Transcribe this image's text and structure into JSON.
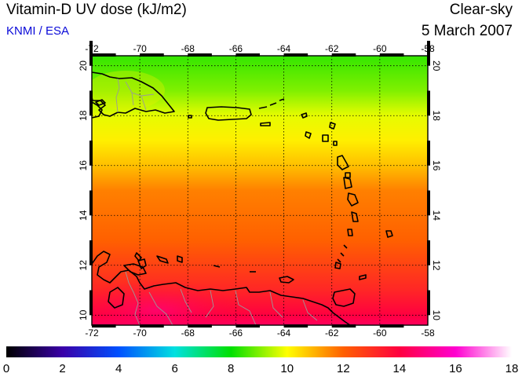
{
  "header": {
    "title": "Vitamin-D UV dose (kJ/m2)",
    "credit": "KNMI / ESA",
    "condition": "Clear-sky",
    "date": "5 March 2007"
  },
  "map": {
    "lon_ticks": [
      "-72",
      "-70",
      "-68",
      "-66",
      "-64",
      "-62",
      "-60",
      "-58"
    ],
    "lat_ticks": [
      "10",
      "12",
      "14",
      "16",
      "18",
      "20"
    ],
    "lon_range": [
      -72,
      -58
    ],
    "lat_range": [
      9.6,
      20.4
    ],
    "field_gradient_by_lat": [
      {
        "lat": 20.4,
        "value": 8.4
      },
      {
        "lat": 19.0,
        "value": 9.0
      },
      {
        "lat": 18.0,
        "value": 9.8
      },
      {
        "lat": 17.0,
        "value": 10.2
      },
      {
        "lat": 16.0,
        "value": 10.8
      },
      {
        "lat": 15.0,
        "value": 11.6
      },
      {
        "lat": 14.0,
        "value": 11.8
      },
      {
        "lat": 13.0,
        "value": 12.0
      },
      {
        "lat": 12.0,
        "value": 12.6
      },
      {
        "lat": 11.0,
        "value": 13.2
      },
      {
        "lat": 10.0,
        "value": 14.0
      },
      {
        "lat": 9.6,
        "value": 14.4
      }
    ],
    "gridlines": true
  },
  "colorbar": {
    "ticks": [
      "0",
      "2",
      "4",
      "6",
      "8",
      "10",
      "12",
      "14",
      "16",
      "18"
    ],
    "range": [
      0,
      18
    ],
    "stops": [
      {
        "value": 0,
        "color": "#000000"
      },
      {
        "value": 2,
        "color": "#3a00a8"
      },
      {
        "value": 4,
        "color": "#0050ff"
      },
      {
        "value": 6,
        "color": "#00e0e0"
      },
      {
        "value": 8,
        "color": "#00e000"
      },
      {
        "value": 10,
        "color": "#ffff00"
      },
      {
        "value": 12,
        "color": "#ff6000"
      },
      {
        "value": 14,
        "color": "#ff0040"
      },
      {
        "value": 16,
        "color": "#ff00d0"
      },
      {
        "value": 18,
        "color": "#ffffff"
      }
    ]
  }
}
